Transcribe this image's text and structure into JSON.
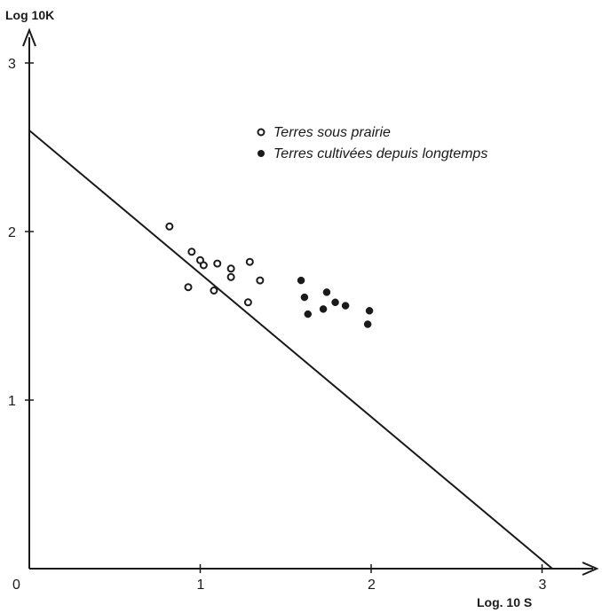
{
  "chart_data": {
    "type": "scatter",
    "title": "",
    "xlabel": "Log. 10 S",
    "ylabel": "Log 10K",
    "xlim": [
      0,
      3.3
    ],
    "ylim": [
      0,
      3.2
    ],
    "x_ticks": [
      {
        "value": 0,
        "label": "0"
      },
      {
        "value": 1,
        "label": "1"
      },
      {
        "value": 2,
        "label": "2"
      },
      {
        "value": 3,
        "label": "3"
      }
    ],
    "y_ticks": [
      {
        "value": 1,
        "label": "1"
      },
      {
        "value": 2,
        "label": "2"
      },
      {
        "value": 3,
        "label": "3"
      }
    ],
    "legend_position": "top-right",
    "series": [
      {
        "name": "Terres sous prairie",
        "marker": "open-circle",
        "points": [
          {
            "x": 0.82,
            "y": 2.03
          },
          {
            "x": 0.95,
            "y": 1.88
          },
          {
            "x": 1.0,
            "y": 1.83
          },
          {
            "x": 1.02,
            "y": 1.8
          },
          {
            "x": 1.1,
            "y": 1.81
          },
          {
            "x": 1.18,
            "y": 1.78
          },
          {
            "x": 1.18,
            "y": 1.73
          },
          {
            "x": 1.29,
            "y": 1.82
          },
          {
            "x": 1.35,
            "y": 1.71
          },
          {
            "x": 0.93,
            "y": 1.67
          },
          {
            "x": 1.08,
            "y": 1.65
          },
          {
            "x": 1.28,
            "y": 1.58
          }
        ]
      },
      {
        "name": "Terres cultivées depuis longtemps",
        "marker": "filled-circle",
        "points": [
          {
            "x": 1.59,
            "y": 1.71
          },
          {
            "x": 1.61,
            "y": 1.61
          },
          {
            "x": 1.63,
            "y": 1.51
          },
          {
            "x": 1.72,
            "y": 1.54
          },
          {
            "x": 1.74,
            "y": 1.64
          },
          {
            "x": 1.79,
            "y": 1.58
          },
          {
            "x": 1.85,
            "y": 1.56
          },
          {
            "x": 1.99,
            "y": 1.53
          },
          {
            "x": 1.98,
            "y": 1.45
          }
        ]
      }
    ],
    "reference_line": {
      "x": [
        0,
        3.06
      ],
      "y": [
        2.6,
        0
      ]
    },
    "colors": {
      "ink": "#1a1a1a",
      "background": "#ffffff"
    }
  }
}
